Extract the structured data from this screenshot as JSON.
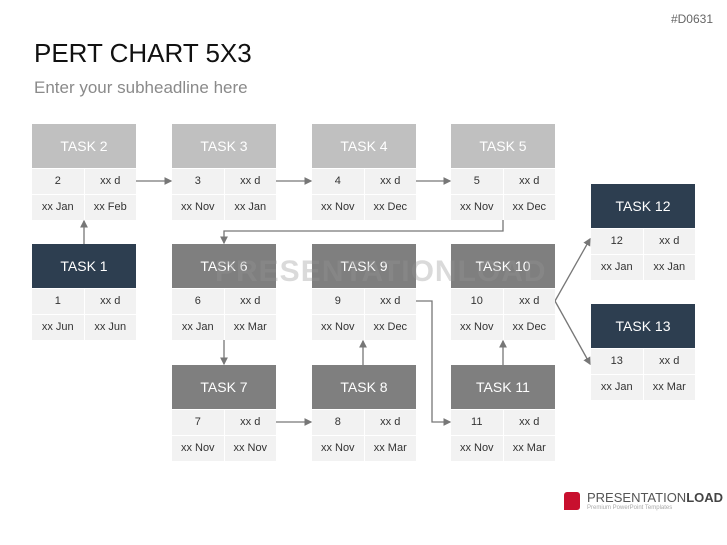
{
  "code": "#D0631",
  "title": "PERT CHART 5X3",
  "subtitle": "Enter your subheadline here",
  "watermark": "PRESENTATIONLOAD",
  "logo": {
    "name_light": "PRESENTATION",
    "name_bold": "LOAD",
    "tagline": "Premium PowerPoint Templates"
  },
  "colors": {
    "light": "#c0c0c0",
    "mid": "#7f7f7f",
    "dark": "#2d3e50",
    "cell": "#f2f2f2"
  },
  "tasks": {
    "t1": {
      "label": "TASK 1",
      "num": "1",
      "dur": "xx d",
      "start": "xx Jun",
      "end": "xx Jun"
    },
    "t2": {
      "label": "TASK 2",
      "num": "2",
      "dur": "xx d",
      "start": "xx Jan",
      "end": "xx Feb"
    },
    "t3": {
      "label": "TASK 3",
      "num": "3",
      "dur": "xx d",
      "start": "xx Nov",
      "end": "xx Jan"
    },
    "t4": {
      "label": "TASK 4",
      "num": "4",
      "dur": "xx d",
      "start": "xx Nov",
      "end": "xx Dec"
    },
    "t5": {
      "label": "TASK 5",
      "num": "5",
      "dur": "xx d",
      "start": "xx Nov",
      "end": "xx Dec"
    },
    "t6": {
      "label": "TASK 6",
      "num": "6",
      "dur": "xx d",
      "start": "xx Jan",
      "end": "xx Mar"
    },
    "t7": {
      "label": "TASK 7",
      "num": "7",
      "dur": "xx d",
      "start": "xx Nov",
      "end": "xx Nov"
    },
    "t8": {
      "label": "TASK 8",
      "num": "8",
      "dur": "xx d",
      "start": "xx Nov",
      "end": "xx Mar"
    },
    "t9": {
      "label": "TASK 9",
      "num": "9",
      "dur": "xx d",
      "start": "xx Nov",
      "end": "xx Dec"
    },
    "t10": {
      "label": "TASK 10",
      "num": "10",
      "dur": "xx d",
      "start": "xx Nov",
      "end": "xx Dec"
    },
    "t11": {
      "label": "TASK 11",
      "num": "11",
      "dur": "xx d",
      "start": "xx Nov",
      "end": "xx Mar"
    },
    "t12": {
      "label": "TASK 12",
      "num": "12",
      "dur": "xx d",
      "start": "xx Jan",
      "end": "xx Jan"
    },
    "t13": {
      "label": "TASK 13",
      "num": "13",
      "dur": "xx d",
      "start": "xx Jan",
      "end": "xx Mar"
    }
  }
}
